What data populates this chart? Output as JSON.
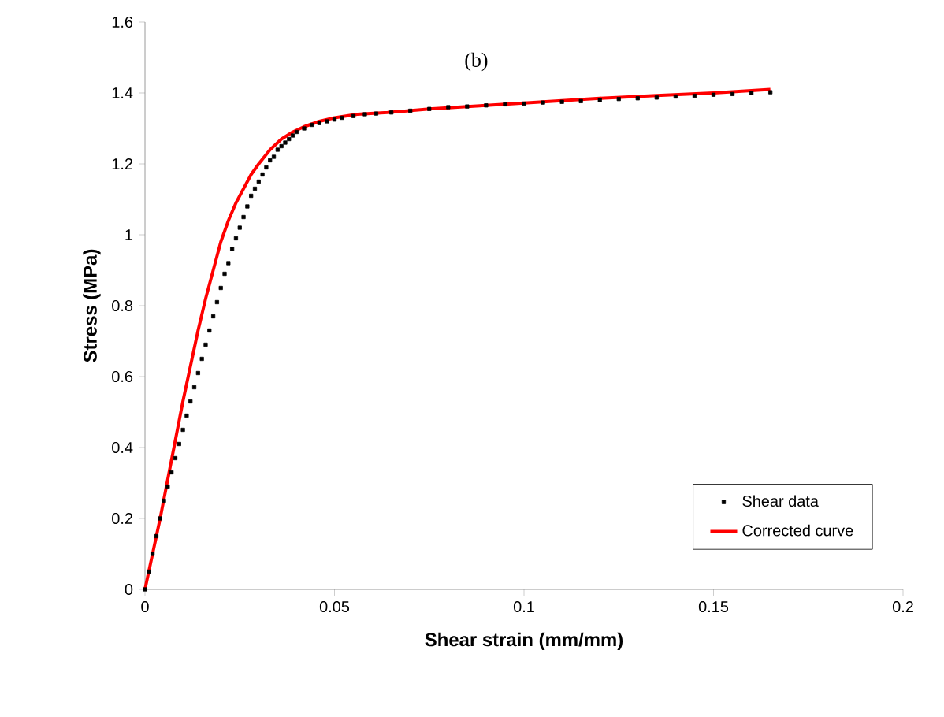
{
  "chart_data": {
    "type": "scatter",
    "xlabel": "Shear strain (mm/mm)",
    "ylabel": "Stress (MPa)",
    "annotations": [
      "(b)"
    ],
    "xlim": [
      0,
      0.2
    ],
    "ylim": [
      0,
      1.6
    ],
    "xticks": [
      0,
      0.05,
      0.1,
      0.15,
      0.2
    ],
    "yticks": [
      0,
      0.2,
      0.4,
      0.6,
      0.8,
      1,
      1.2,
      1.4,
      1.6
    ],
    "grid": false,
    "legend": "bottom right",
    "series": [
      {
        "name": "Shear data",
        "marker": "square",
        "color": "#000000",
        "x": [
          0,
          0.001,
          0.002,
          0.003,
          0.004,
          0.005,
          0.006,
          0.007,
          0.008,
          0.009,
          0.01,
          0.011,
          0.012,
          0.013,
          0.014,
          0.015,
          0.016,
          0.017,
          0.018,
          0.019,
          0.02,
          0.021,
          0.022,
          0.023,
          0.024,
          0.025,
          0.026,
          0.027,
          0.028,
          0.029,
          0.03,
          0.031,
          0.032,
          0.033,
          0.034,
          0.035,
          0.036,
          0.037,
          0.038,
          0.039,
          0.04,
          0.042,
          0.044,
          0.046,
          0.048,
          0.05,
          0.052,
          0.055,
          0.058,
          0.061,
          0.065,
          0.07,
          0.075,
          0.08,
          0.085,
          0.09,
          0.095,
          0.1,
          0.105,
          0.11,
          0.115,
          0.12,
          0.125,
          0.13,
          0.135,
          0.14,
          0.145,
          0.15,
          0.155,
          0.16,
          0.165
        ],
        "values": [
          0,
          0.05,
          0.1,
          0.15,
          0.2,
          0.25,
          0.29,
          0.33,
          0.37,
          0.41,
          0.45,
          0.49,
          0.53,
          0.57,
          0.61,
          0.65,
          0.69,
          0.73,
          0.77,
          0.81,
          0.85,
          0.89,
          0.92,
          0.96,
          0.99,
          1.02,
          1.05,
          1.08,
          1.11,
          1.13,
          1.15,
          1.17,
          1.19,
          1.21,
          1.22,
          1.24,
          1.25,
          1.26,
          1.27,
          1.28,
          1.29,
          1.3,
          1.31,
          1.315,
          1.32,
          1.325,
          1.33,
          1.335,
          1.34,
          1.342,
          1.345,
          1.35,
          1.355,
          1.36,
          1.362,
          1.365,
          1.368,
          1.37,
          1.373,
          1.375,
          1.377,
          1.38,
          1.383,
          1.385,
          1.387,
          1.39,
          1.392,
          1.395,
          1.397,
          1.4,
          1.402
        ]
      },
      {
        "name": "Corrected curve",
        "type": "line",
        "color": "#ff0000",
        "x": [
          0,
          0.002,
          0.004,
          0.006,
          0.008,
          0.01,
          0.012,
          0.014,
          0.016,
          0.018,
          0.02,
          0.022,
          0.024,
          0.026,
          0.028,
          0.03,
          0.033,
          0.036,
          0.039,
          0.042,
          0.046,
          0.05,
          0.056,
          0.064,
          0.075,
          0.09,
          0.105,
          0.12,
          0.135,
          0.15,
          0.165
        ],
        "values": [
          0,
          0.1,
          0.2,
          0.31,
          0.42,
          0.53,
          0.63,
          0.73,
          0.82,
          0.9,
          0.98,
          1.04,
          1.09,
          1.13,
          1.17,
          1.2,
          1.24,
          1.27,
          1.29,
          1.305,
          1.32,
          1.33,
          1.34,
          1.345,
          1.355,
          1.365,
          1.375,
          1.385,
          1.393,
          1.4,
          1.41
        ]
      }
    ]
  }
}
